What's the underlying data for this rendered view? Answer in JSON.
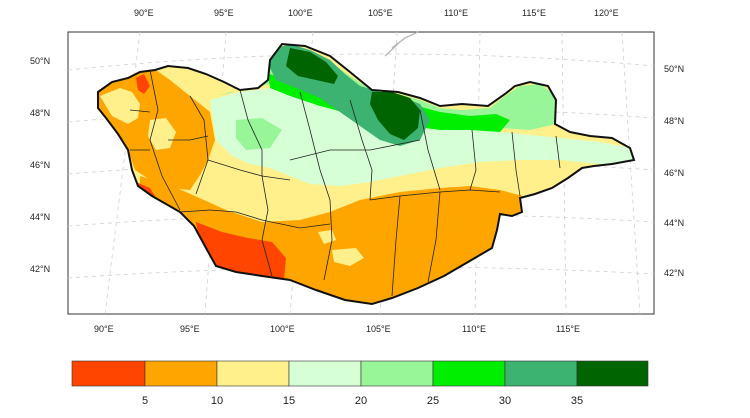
{
  "map": {
    "type": "choropleth",
    "region": "Mongolia",
    "projection": "lambert-conformal",
    "top_lon_ticks": [
      "90°E",
      "95°E",
      "100°E",
      "105°E",
      "110°E",
      "115°E",
      "120°E"
    ],
    "bottom_lon_ticks": [
      "90°E",
      "95°E",
      "100°E",
      "105°E",
      "110°E",
      "115°E"
    ],
    "left_lat_ticks": [
      "50°N",
      "48°N",
      "46°N",
      "44°N",
      "42°N"
    ],
    "right_lat_ticks": [
      "50°N",
      "48°N",
      "46°N",
      "44°N",
      "42°N"
    ],
    "grid": true
  },
  "colorbar": {
    "labels": [
      "5",
      "10",
      "15",
      "20",
      "25",
      "30",
      "35"
    ],
    "colors": [
      "#ff4500",
      "#ffa500",
      "#fff08c",
      "#d6ffd6",
      "#98f598",
      "#00ee00",
      "#3cb371",
      "#006400"
    ]
  }
}
